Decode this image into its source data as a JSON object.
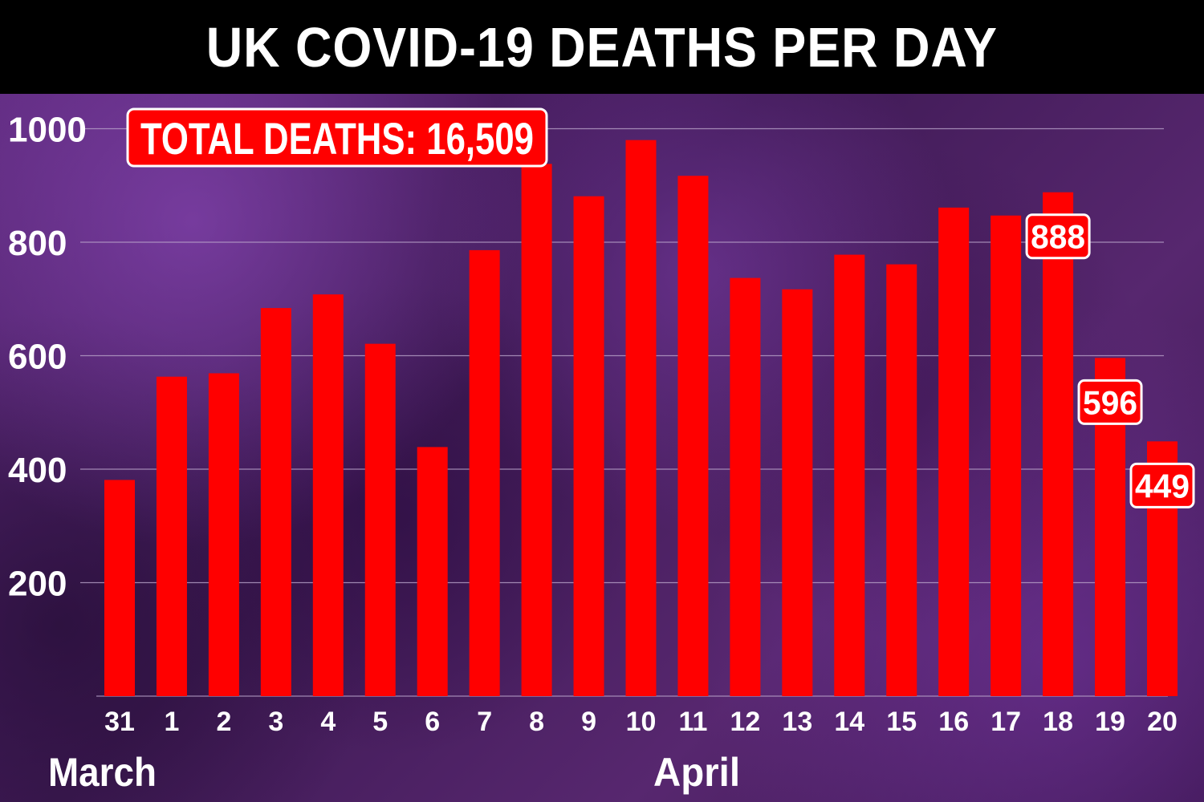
{
  "title": "UK COVID-19 DEATHS PER DAY",
  "colors": {
    "bar": "#ff0000",
    "header_bg": "#000000",
    "background": "#4a1f63",
    "gridline": "#b9a3c9",
    "callout_border": "#ffffff"
  },
  "total_callout": "TOTAL DEATHS: 16,509",
  "month_labels": {
    "march": "March",
    "april": "April"
  },
  "chart_data": {
    "type": "bar",
    "title": "UK COVID-19 DEATHS PER DAY",
    "xlabel": "",
    "ylabel": "",
    "categories": [
      "31",
      "1",
      "2",
      "3",
      "4",
      "5",
      "6",
      "7",
      "8",
      "9",
      "10",
      "11",
      "12",
      "13",
      "14",
      "15",
      "16",
      "17",
      "18",
      "19",
      "20"
    ],
    "values": [
      381,
      563,
      569,
      684,
      708,
      621,
      439,
      786,
      938,
      881,
      980,
      917,
      737,
      717,
      778,
      761,
      861,
      847,
      888,
      596,
      449
    ],
    "yticks": [
      200,
      400,
      600,
      800,
      1000
    ],
    "ytick_labels": [
      "200",
      "400",
      "600",
      "800",
      "1000"
    ],
    "ylim": [
      0,
      1050
    ],
    "grid": true,
    "data_labels": [
      {
        "category": "18",
        "text": "888"
      },
      {
        "category": "19",
        "text": "596"
      },
      {
        "category": "20",
        "text": "449"
      }
    ]
  }
}
